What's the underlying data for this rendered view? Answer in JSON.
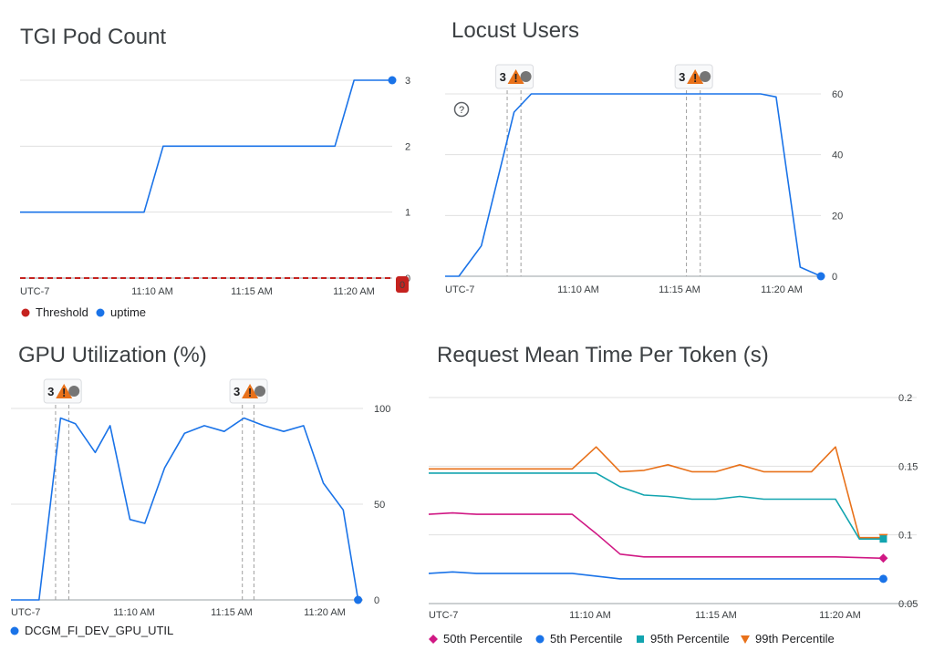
{
  "chart_data": [
    {
      "id": "tgi",
      "type": "line",
      "title": "TGI Pod Count",
      "timezone_label": "UTC-7",
      "x_ticks": [
        "11:10 AM",
        "11:15 AM",
        "11:20 AM"
      ],
      "y_ticks": [
        "0",
        "1",
        "2",
        "3"
      ],
      "ylim": [
        0,
        3
      ],
      "series": [
        {
          "name": "Threshold",
          "color": "#c5221f",
          "style": "dashed",
          "points": [
            [
              "11:03:00",
              0
            ],
            [
              "11:22:30",
              0
            ]
          ],
          "end_badge": "0"
        },
        {
          "name": "uptime",
          "color": "#1a73e8",
          "points": [
            [
              "11:03:00",
              1
            ],
            [
              "11:09:30",
              1
            ],
            [
              "11:10:30",
              2
            ],
            [
              "11:19:30",
              2
            ],
            [
              "11:20:30",
              3
            ],
            [
              "11:22:30",
              3
            ]
          ]
        }
      ],
      "legend": [
        {
          "label": "Threshold",
          "color": "#c5221f",
          "marker": "circle"
        },
        {
          "label": "uptime",
          "color": "#1a73e8",
          "marker": "circle"
        }
      ]
    },
    {
      "id": "locust",
      "type": "line",
      "title": "Locust Users",
      "timezone_label": "UTC-7",
      "x_ticks": [
        "11:10 AM",
        "11:15 AM",
        "11:20 AM"
      ],
      "y_ticks": [
        "0",
        "20",
        "40",
        "60"
      ],
      "ylim": [
        0,
        60
      ],
      "help_icon": true,
      "events": [
        {
          "label": "3",
          "time_start": "11:07:00",
          "time_end": "11:07:40"
        },
        {
          "label": "3",
          "time_start": "11:15:40",
          "time_end": "11:16:20"
        }
      ],
      "series": [
        {
          "name": "Locust Users",
          "color": "#1a73e8",
          "points": [
            [
              "11:04:00",
              0
            ],
            [
              "11:04:40",
              0
            ],
            [
              "11:05:45",
              10
            ],
            [
              "11:07:20",
              54
            ],
            [
              "11:08:10",
              60
            ],
            [
              "11:19:15",
              60
            ],
            [
              "11:20:00",
              59
            ],
            [
              "11:21:10",
              3
            ],
            [
              "11:22:10",
              0
            ]
          ]
        }
      ]
    },
    {
      "id": "gpu",
      "type": "line",
      "title": "GPU Utilization (%)",
      "timezone_label": "UTC-7",
      "x_ticks": [
        "11:10 AM",
        "11:15 AM",
        "11:20 AM"
      ],
      "y_ticks": [
        "0",
        "50",
        "100"
      ],
      "ylim": [
        0,
        100
      ],
      "events": [
        {
          "label": "3",
          "time_start": "11:06:15",
          "time_end": "11:06:55"
        },
        {
          "label": "3",
          "time_start": "11:15:40",
          "time_end": "11:16:15"
        }
      ],
      "series": [
        {
          "name": "DCGM_FI_DEV_GPU_UTIL",
          "color": "#1a73e8",
          "points": [
            [
              "11:04:00",
              0
            ],
            [
              "11:05:25",
              0
            ],
            [
              "11:06:30",
              95
            ],
            [
              "11:07:15",
              92
            ],
            [
              "11:08:15",
              77
            ],
            [
              "11:09:00",
              91
            ],
            [
              "11:10:00",
              42
            ],
            [
              "11:10:45",
              40
            ],
            [
              "11:11:45",
              69
            ],
            [
              "11:12:45",
              87
            ],
            [
              "11:13:45",
              91
            ],
            [
              "11:14:45",
              88
            ],
            [
              "11:15:45",
              95
            ],
            [
              "11:16:45",
              91
            ],
            [
              "11:17:45",
              88
            ],
            [
              "11:18:45",
              91
            ],
            [
              "11:19:45",
              61
            ],
            [
              "11:20:45",
              47
            ],
            [
              "11:21:30",
              0
            ]
          ]
        }
      ],
      "legend": [
        {
          "label": "DCGM_FI_DEV_GPU_UTIL",
          "color": "#1a73e8",
          "marker": "circle"
        }
      ]
    },
    {
      "id": "req",
      "type": "line",
      "title": "Request Mean Time Per Token (s)",
      "timezone_label": "UTC-7",
      "x_ticks": [
        "11:10 AM",
        "11:15 AM",
        "11:20 AM"
      ],
      "y_ticks": [
        "0.05",
        "0.1",
        "0.15",
        "0.2"
      ],
      "ylim": [
        0.05,
        0.2
      ],
      "series": [
        {
          "name": "99th Percentile",
          "color": "#e8711a",
          "marker": "triangle-down",
          "points": [
            [
              "11:03:00",
              0.148
            ],
            [
              "11:09:00",
              0.148
            ],
            [
              "11:10:00",
              0.164
            ],
            [
              "11:11:00",
              0.146
            ],
            [
              "11:12:00",
              0.147
            ],
            [
              "11:13:00",
              0.151
            ],
            [
              "11:14:00",
              0.146
            ],
            [
              "11:15:00",
              0.146
            ],
            [
              "11:16:00",
              0.151
            ],
            [
              "11:17:00",
              0.146
            ],
            [
              "11:18:00",
              0.146
            ],
            [
              "11:19:00",
              0.146
            ],
            [
              "11:20:00",
              0.164
            ],
            [
              "11:21:00",
              0.098
            ],
            [
              "11:22:00",
              0.098
            ]
          ]
        },
        {
          "name": "95th Percentile",
          "color": "#12a4af",
          "marker": "square",
          "points": [
            [
              "11:03:00",
              0.145
            ],
            [
              "11:10:00",
              0.145
            ],
            [
              "11:11:00",
              0.135
            ],
            [
              "11:12:00",
              0.129
            ],
            [
              "11:13:00",
              0.128
            ],
            [
              "11:14:00",
              0.126
            ],
            [
              "11:15:00",
              0.126
            ],
            [
              "11:16:00",
              0.128
            ],
            [
              "11:17:00",
              0.126
            ],
            [
              "11:18:00",
              0.126
            ],
            [
              "11:19:00",
              0.126
            ],
            [
              "11:20:00",
              0.126
            ],
            [
              "11:21:00",
              0.097
            ],
            [
              "11:22:00",
              0.097
            ]
          ]
        },
        {
          "name": "50th Percentile",
          "color": "#d01884",
          "marker": "diamond",
          "points": [
            [
              "11:03:00",
              0.115
            ],
            [
              "11:04:00",
              0.116
            ],
            [
              "11:05:00",
              0.115
            ],
            [
              "11:09:00",
              0.115
            ],
            [
              "11:10:00",
              0.101
            ],
            [
              "11:11:00",
              0.086
            ],
            [
              "11:12:00",
              0.084
            ],
            [
              "11:20:00",
              0.084
            ],
            [
              "11:22:00",
              0.083
            ]
          ]
        },
        {
          "name": "5th Percentile",
          "color": "#1a73e8",
          "marker": "circle",
          "points": [
            [
              "11:03:00",
              0.072
            ],
            [
              "11:04:00",
              0.073
            ],
            [
              "11:05:00",
              0.072
            ],
            [
              "11:09:00",
              0.072
            ],
            [
              "11:10:00",
              0.07
            ],
            [
              "11:11:00",
              0.068
            ],
            [
              "11:22:00",
              0.068
            ]
          ]
        }
      ],
      "legend": [
        {
          "label": "50th Percentile",
          "color": "#d01884",
          "marker": "diamond"
        },
        {
          "label": "5th Percentile",
          "color": "#1a73e8",
          "marker": "circle"
        },
        {
          "label": "95th Percentile",
          "color": "#12a4af",
          "marker": "square"
        },
        {
          "label": "99th Percentile",
          "color": "#e8711a",
          "marker": "triangle-down"
        }
      ]
    }
  ],
  "icons": {
    "event": "warning-triangle-icon",
    "help": "help-circle-icon"
  }
}
